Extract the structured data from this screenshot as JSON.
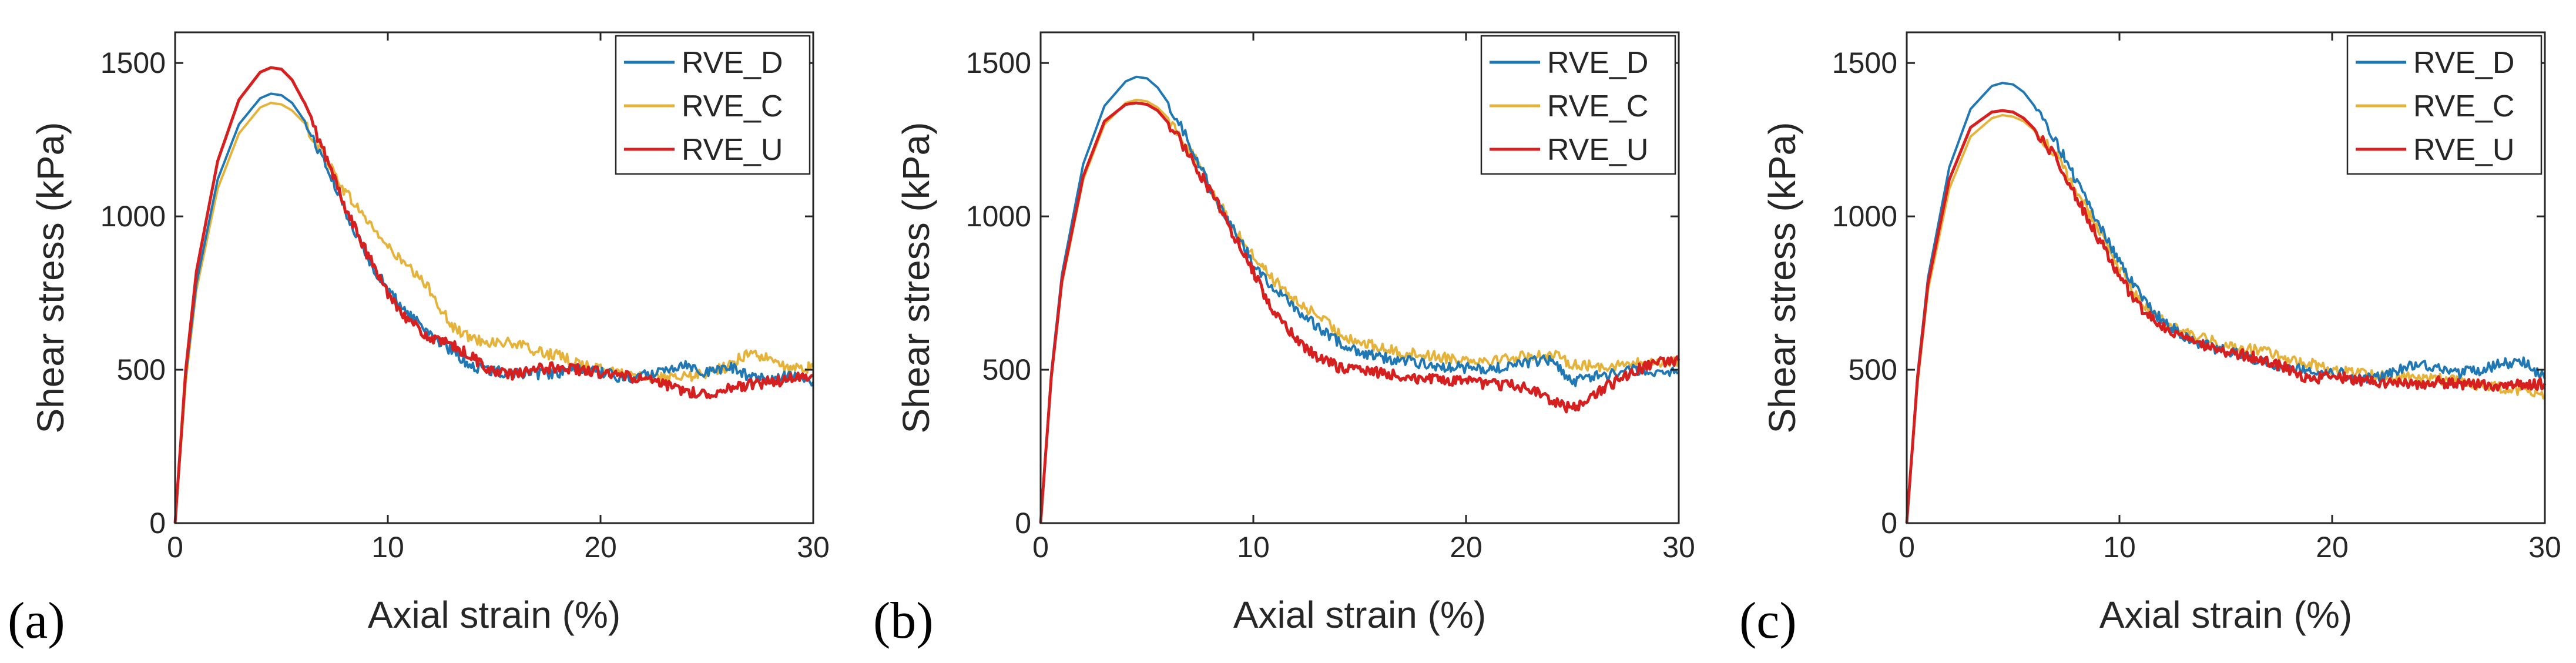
{
  "colors": {
    "RVE_D": "#1f77b4",
    "RVE_C": "#e6b33a",
    "RVE_U": "#d62020",
    "axis": "#262626"
  },
  "chart_data": [
    {
      "panel_label": "(a)",
      "type": "line",
      "xlabel": "Axial strain (%)",
      "ylabel": "Shear stress (kPa)",
      "xlim": [
        0,
        30
      ],
      "ylim": [
        0,
        1600
      ],
      "xticks": [
        0,
        10,
        20,
        30
      ],
      "yticks": [
        0,
        500,
        1000,
        1500
      ],
      "legend_position": "top-right",
      "series": [
        {
          "name": "RVE_D",
          "x": [
            0,
            0.5,
            1,
            2,
            3,
            4,
            4.5,
            5,
            5.5,
            6,
            7,
            8,
            9,
            10,
            11,
            12,
            13,
            14,
            15,
            16,
            17,
            18,
            19,
            20,
            21,
            22,
            23,
            24,
            25,
            26,
            27,
            28,
            29,
            30
          ],
          "y": [
            0,
            480,
            780,
            1120,
            1300,
            1385,
            1400,
            1395,
            1370,
            1320,
            1180,
            1020,
            870,
            760,
            680,
            620,
            560,
            510,
            495,
            490,
            485,
            490,
            500,
            495,
            470,
            480,
            500,
            520,
            490,
            510,
            480,
            470,
            480,
            460
          ]
        },
        {
          "name": "RVE_C",
          "x": [
            0,
            0.5,
            1,
            2,
            3,
            4,
            4.5,
            5,
            5.5,
            6,
            7,
            8,
            9,
            10,
            11,
            12,
            13,
            14,
            15,
            16,
            17,
            18,
            19,
            20,
            21,
            22,
            23,
            24,
            25,
            26,
            27,
            28,
            29,
            30
          ],
          "y": [
            0,
            460,
            760,
            1090,
            1270,
            1355,
            1370,
            1365,
            1345,
            1310,
            1200,
            1080,
            990,
            900,
            830,
            760,
            640,
            600,
            590,
            585,
            560,
            545,
            520,
            500,
            490,
            480,
            470,
            475,
            490,
            510,
            560,
            530,
            500,
            510
          ]
        },
        {
          "name": "RVE_U",
          "x": [
            0,
            0.5,
            1,
            2,
            3,
            4,
            4.5,
            5,
            5.5,
            6,
            7,
            8,
            9,
            10,
            11,
            12,
            13,
            14,
            15,
            16,
            17,
            18,
            19,
            20,
            21,
            22,
            23,
            24,
            25,
            26,
            27,
            28,
            29,
            30
          ],
          "y": [
            0,
            500,
            820,
            1180,
            1380,
            1470,
            1485,
            1480,
            1445,
            1380,
            1210,
            1030,
            880,
            750,
            660,
            600,
            580,
            540,
            490,
            485,
            500,
            510,
            500,
            490,
            480,
            470,
            450,
            430,
            420,
            440,
            450,
            460,
            470,
            480
          ]
        }
      ]
    },
    {
      "panel_label": "(b)",
      "type": "line",
      "xlabel": "Axial strain (%)",
      "ylabel": "Shear stress (kPa)",
      "xlim": [
        0,
        30
      ],
      "ylim": [
        0,
        1600
      ],
      "xticks": [
        0,
        10,
        20,
        30
      ],
      "yticks": [
        0,
        500,
        1000,
        1500
      ],
      "legend_position": "top-right",
      "series": [
        {
          "name": "RVE_D",
          "x": [
            0,
            0.5,
            1,
            2,
            3,
            4,
            4.5,
            5,
            5.5,
            6,
            7,
            8,
            9,
            10,
            11,
            12,
            13,
            14,
            15,
            16,
            17,
            18,
            19,
            20,
            21,
            22,
            23,
            24,
            25,
            26,
            27,
            28,
            29,
            30
          ],
          "y": [
            0,
            490,
            810,
            1170,
            1360,
            1440,
            1455,
            1450,
            1420,
            1370,
            1240,
            1090,
            960,
            850,
            760,
            700,
            640,
            590,
            560,
            540,
            530,
            520,
            510,
            505,
            500,
            510,
            525,
            530,
            460,
            480,
            490,
            500,
            495,
            490
          ]
        },
        {
          "name": "RVE_C",
          "x": [
            0,
            0.5,
            1,
            2,
            3,
            4,
            4.5,
            5,
            5.5,
            6,
            7,
            8,
            9,
            10,
            11,
            12,
            13,
            14,
            15,
            16,
            17,
            18,
            19,
            20,
            21,
            22,
            23,
            24,
            25,
            26,
            27,
            28,
            29,
            30
          ],
          "y": [
            0,
            470,
            780,
            1120,
            1300,
            1370,
            1380,
            1375,
            1355,
            1320,
            1220,
            1090,
            970,
            870,
            790,
            720,
            680,
            620,
            590,
            570,
            555,
            550,
            540,
            535,
            530,
            540,
            545,
            550,
            520,
            510,
            515,
            520,
            525,
            530
          ]
        },
        {
          "name": "RVE_U",
          "x": [
            0,
            0.5,
            1,
            2,
            3,
            4,
            4.5,
            5,
            5.5,
            6,
            7,
            8,
            9,
            10,
            11,
            12,
            13,
            14,
            15,
            16,
            17,
            18,
            19,
            20,
            21,
            22,
            23,
            24,
            25,
            26,
            27,
            28,
            29,
            30
          ],
          "y": [
            0,
            475,
            790,
            1130,
            1310,
            1365,
            1370,
            1365,
            1345,
            1305,
            1200,
            1080,
            950,
            820,
            680,
            600,
            540,
            510,
            500,
            490,
            480,
            470,
            465,
            460,
            455,
            450,
            440,
            400,
            370,
            420,
            460,
            500,
            520,
            530
          ]
        }
      ]
    },
    {
      "panel_label": "(c)",
      "type": "line",
      "xlabel": "Axial strain (%)",
      "ylabel": "Shear stress (kPa)",
      "xlim": [
        0,
        30
      ],
      "ylim": [
        0,
        1600
      ],
      "xticks": [
        0,
        10,
        20,
        30
      ],
      "yticks": [
        0,
        500,
        1000,
        1500
      ],
      "legend_position": "top-right",
      "series": [
        {
          "name": "RVE_D",
          "x": [
            0,
            0.5,
            1,
            2,
            3,
            4,
            4.5,
            5,
            5.5,
            6,
            7,
            8,
            9,
            10,
            11,
            12,
            13,
            14,
            15,
            16,
            17,
            18,
            19,
            20,
            21,
            22,
            23,
            24,
            25,
            26,
            27,
            28,
            29,
            30
          ],
          "y": [
            0,
            480,
            800,
            1160,
            1350,
            1425,
            1435,
            1430,
            1405,
            1360,
            1250,
            1110,
            980,
            850,
            740,
            660,
            610,
            580,
            560,
            545,
            520,
            510,
            500,
            495,
            480,
            470,
            500,
            520,
            510,
            490,
            500,
            520,
            530,
            470
          ]
        },
        {
          "name": "RVE_C",
          "x": [
            0,
            0.5,
            1,
            2,
            3,
            4,
            4.5,
            5,
            5.5,
            6,
            7,
            8,
            9,
            10,
            11,
            12,
            13,
            14,
            15,
            16,
            17,
            18,
            19,
            20,
            21,
            22,
            23,
            24,
            25,
            26,
            27,
            28,
            29,
            30
          ],
          "y": [
            0,
            450,
            760,
            1090,
            1260,
            1320,
            1330,
            1325,
            1310,
            1280,
            1200,
            1080,
            960,
            830,
            720,
            660,
            620,
            600,
            580,
            570,
            555,
            535,
            520,
            500,
            490,
            485,
            480,
            475,
            470,
            460,
            450,
            440,
            430,
            410
          ]
        },
        {
          "name": "RVE_U",
          "x": [
            0,
            0.5,
            1,
            2,
            3,
            4,
            4.5,
            5,
            5.5,
            6,
            7,
            8,
            9,
            10,
            11,
            12,
            13,
            14,
            15,
            16,
            17,
            18,
            19,
            20,
            21,
            22,
            23,
            24,
            25,
            26,
            27,
            28,
            29,
            30
          ],
          "y": [
            0,
            465,
            780,
            1120,
            1290,
            1340,
            1345,
            1340,
            1320,
            1285,
            1190,
            1060,
            930,
            800,
            700,
            640,
            600,
            580,
            560,
            545,
            530,
            500,
            470,
            480,
            470,
            460,
            455,
            450,
            460,
            455,
            450,
            445,
            450,
            455
          ]
        }
      ]
    }
  ]
}
